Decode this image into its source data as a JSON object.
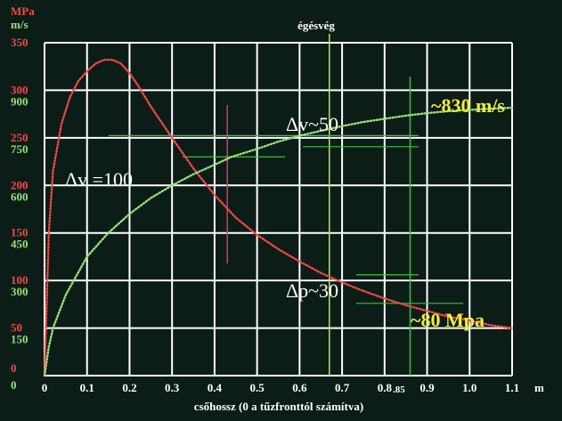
{
  "colors": {
    "background": "#0b1d16",
    "grid": "#ffffff",
    "pressure": "#f04848",
    "velocity": "#98e07a",
    "highlight_text": "#f3ec3a",
    "marker_red": "#e8306a",
    "marker_green": "#3fbf3f",
    "marker_yellow_green": "#b9e64a"
  },
  "chart_data": {
    "type": "line",
    "title": "",
    "xlabel": "csőhossz (0 a tűzfronttól számítva)",
    "x_unit": "m",
    "xlim": [
      0,
      1.1
    ],
    "x_ticks": [
      "0",
      "0.1",
      "0.2",
      "0.3",
      "0.4",
      "0.5",
      "0.6",
      "0.7",
      "0.8",
      "0.9",
      "1.0",
      "1.1"
    ],
    "y_left": {
      "unit": "MPa",
      "ylim": [
        0,
        350
      ],
      "ticks": [
        "0",
        "50",
        "100",
        "150",
        "200",
        "250",
        "300",
        "350"
      ]
    },
    "y_right": {
      "unit": "m/s",
      "ylim": [
        0,
        1050
      ],
      "ticks": [
        "0",
        "150",
        "300",
        "450",
        "600",
        "750",
        "900"
      ]
    },
    "series": [
      {
        "axis": "MPa",
        "x": [
          0.0,
          0.01,
          0.02,
          0.04,
          0.06,
          0.08,
          0.1,
          0.12,
          0.14,
          0.16,
          0.18,
          0.2,
          0.22,
          0.25,
          0.3,
          0.35,
          0.4,
          0.45,
          0.5,
          0.55,
          0.6,
          0.65,
          0.7,
          0.75,
          0.8,
          0.85,
          0.9,
          0.95,
          1.0,
          1.05,
          1.1
        ],
        "values": [
          0,
          150,
          215,
          265,
          293,
          310,
          320,
          328,
          332,
          332,
          328,
          318,
          305,
          283,
          250,
          218,
          190,
          166,
          148,
          133,
          120,
          108,
          98,
          89,
          81,
          74,
          68,
          62,
          58,
          53,
          50
        ]
      },
      {
        "axis": "m/s",
        "x": [
          0.0,
          0.01,
          0.02,
          0.05,
          0.1,
          0.15,
          0.2,
          0.25,
          0.3,
          0.35,
          0.4,
          0.44,
          0.5,
          0.55,
          0.6,
          0.65,
          0.7,
          0.75,
          0.8,
          0.85,
          0.9,
          0.95,
          1.0,
          1.05,
          1.1
        ],
        "values": [
          0,
          90,
          150,
          255,
          375,
          450,
          510,
          560,
          600,
          635,
          665,
          690,
          715,
          738,
          757,
          772,
          787,
          800,
          810,
          820,
          828,
          834,
          838,
          842,
          845
        ]
      }
    ],
    "annotations": {
      "burnout": "égésvég",
      "burnout_x": 0.67,
      "marker_85_label": ".85",
      "marker_85_x": 0.86,
      "marker_red_x": 0.43,
      "delta_v_100": "Δv =100",
      "delta_v_50": "Δv~50",
      "delta_p_30": "Δp~30",
      "final_velocity": "~830 m/s",
      "final_pressure": "~80 Mpa"
    }
  }
}
